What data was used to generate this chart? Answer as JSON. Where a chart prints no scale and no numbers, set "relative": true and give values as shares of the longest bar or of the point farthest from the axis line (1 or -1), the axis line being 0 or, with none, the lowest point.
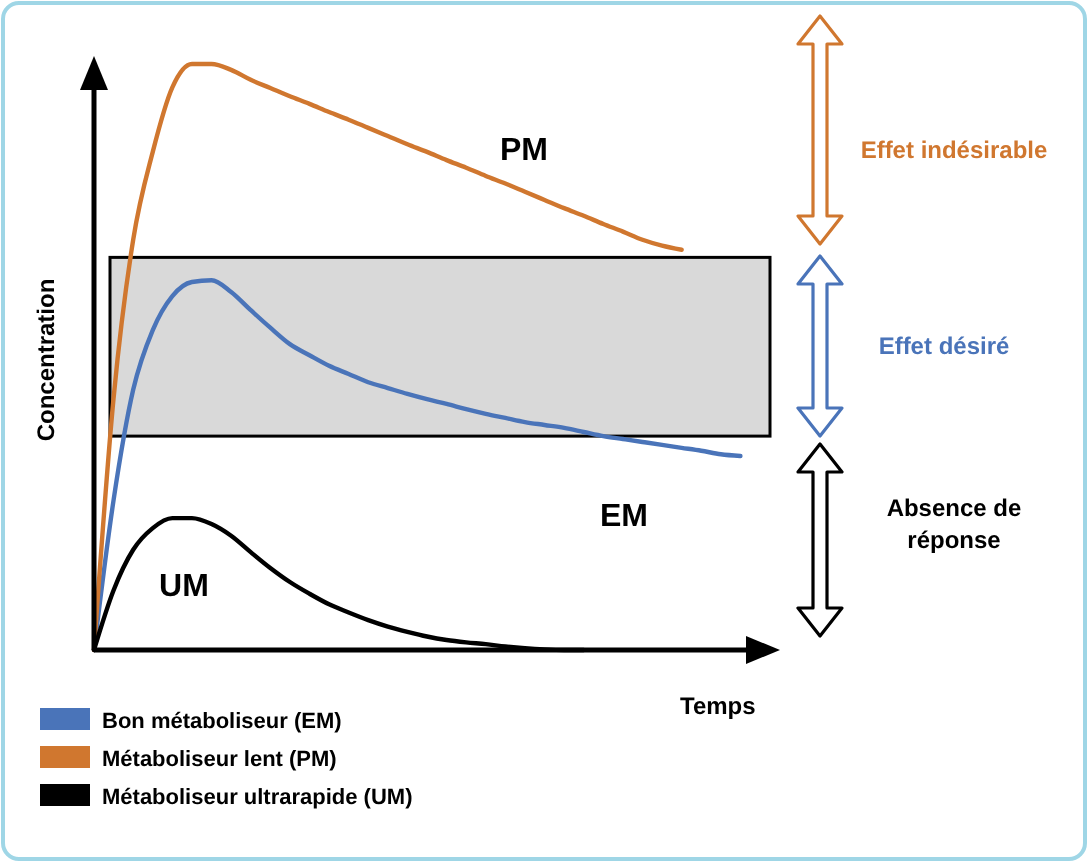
{
  "chart_data": {
    "type": "line",
    "relative": true,
    "xlabel": "Temps",
    "ylabel": "Concentration",
    "categories": [
      null,
      null,
      null,
      null,
      null,
      null,
      null,
      null,
      null,
      null,
      null,
      null,
      null,
      null,
      null,
      null,
      null,
      null,
      null,
      null,
      null,
      null,
      null,
      null,
      null,
      null,
      null,
      null,
      null,
      null,
      null,
      null,
      null,
      null,
      null
    ],
    "series": [
      {
        "name": "Bon métaboliseur (EM)",
        "color": "#4a74b9",
        "values": [
          0,
          0.256,
          0.444,
          0.546,
          0.604,
          0.628,
          0.631,
          0.611,
          0.58,
          0.55,
          0.522,
          0.503,
          0.485,
          0.471,
          0.457,
          0.447,
          0.437,
          0.428,
          0.42,
          0.411,
          0.403,
          0.396,
          0.389,
          0.384,
          0.379,
          0.372,
          0.365,
          0.36,
          0.355,
          0.35,
          0.345,
          0.34,
          0.334,
          0.331,
          null
        ]
      },
      {
        "name": "Métaboliseur lent (PM)",
        "color": "#d0772f",
        "values": [
          0,
          0.43,
          0.7,
          0.85,
          0.96,
          1,
          1,
          0.99,
          0.973,
          0.959,
          0.945,
          0.932,
          0.918,
          0.905,
          0.891,
          0.877,
          0.863,
          0.85,
          0.836,
          0.823,
          0.809,
          0.796,
          0.782,
          0.768,
          0.754,
          0.741,
          0.727,
          0.714,
          0.7,
          0.69,
          0.683,
          null,
          null,
          null,
          null
        ]
      },
      {
        "name": "Métaboliseur ultrarapide (UM)",
        "color": "#000000",
        "values": [
          0,
          0.102,
          0.171,
          0.208,
          0.225,
          0.225,
          0.215,
          0.195,
          0.167,
          0.14,
          0.116,
          0.096,
          0.078,
          0.064,
          0.051,
          0.04,
          0.031,
          0.023,
          0.017,
          0.013,
          0.01,
          0.006,
          0.003,
          0.001,
          0,
          0,
          null,
          null,
          null,
          null,
          null,
          null,
          null,
          null,
          null
        ]
      }
    ],
    "bands": [
      {
        "axis": "y",
        "from": 0.365,
        "to": 0.67,
        "color": "#d9d9d9"
      }
    ],
    "annotations": [
      "PM",
      "EM",
      "UM",
      "Effet indésirable",
      "Effet désiré",
      "Absence de réponse"
    ],
    "legend": "bottom left",
    "marker": "none",
    "line_style": "solid"
  }
}
